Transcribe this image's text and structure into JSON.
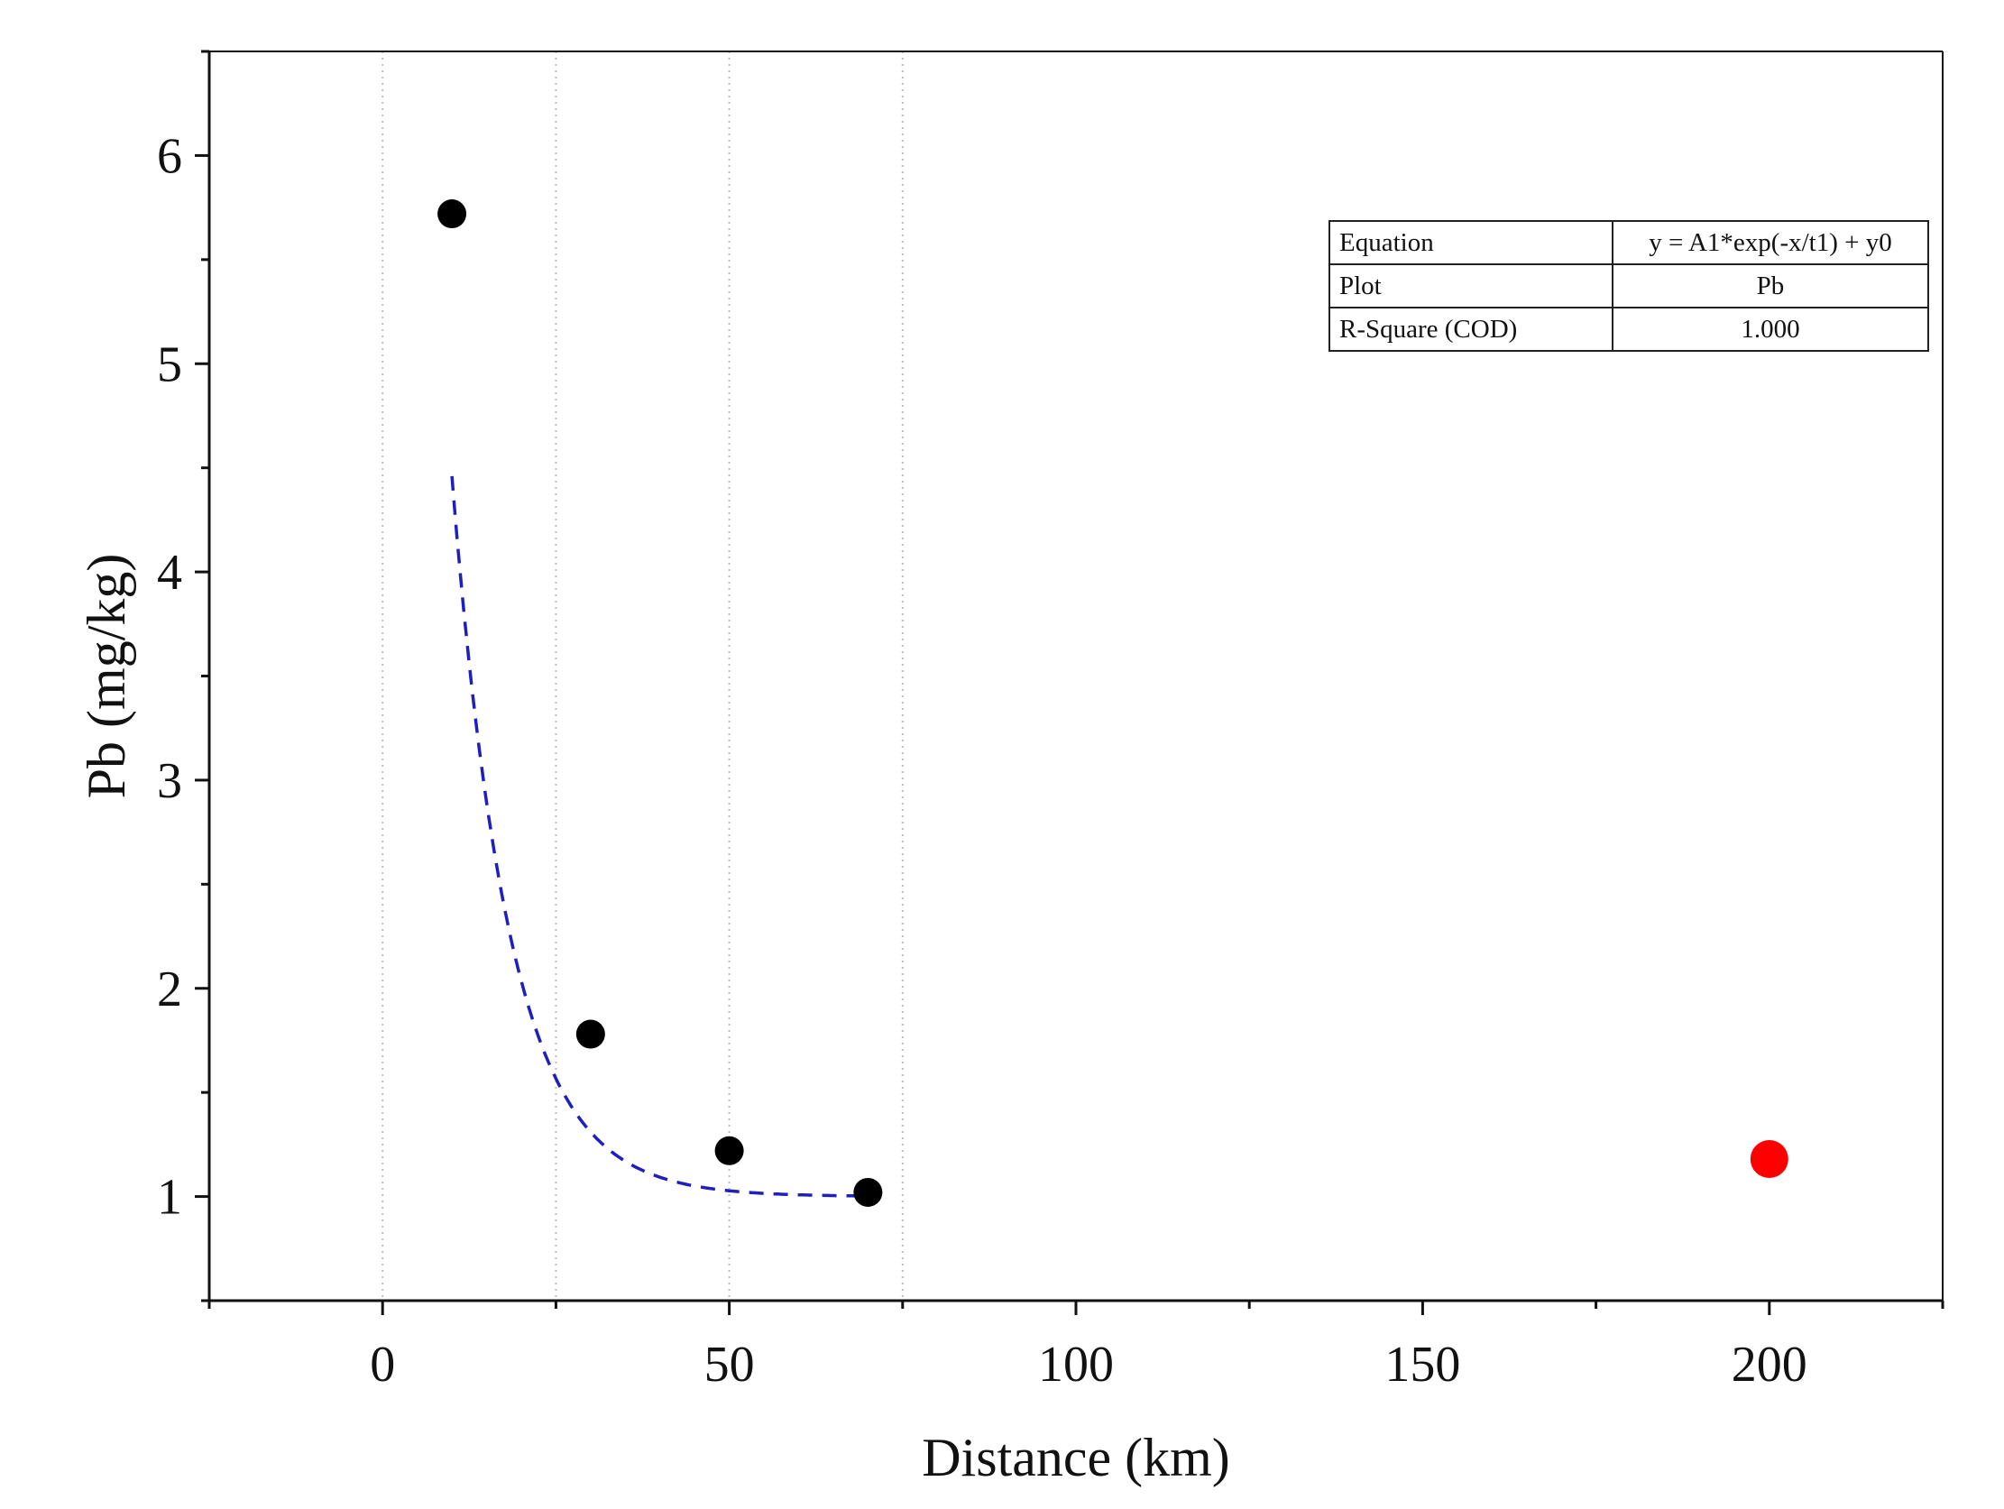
{
  "chart_data": {
    "type": "scatter",
    "xlabel": "Distance (km)",
    "ylabel": "Pb (mg/kg)",
    "xlim": [
      -25,
      225
    ],
    "ylim": [
      0.5,
      6.5
    ],
    "x_ticks": [
      0,
      50,
      100,
      150,
      200
    ],
    "y_ticks": [
      1,
      2,
      3,
      4,
      5,
      6
    ],
    "grid": "vertical dotted",
    "series": [
      {
        "kind": "points",
        "color": "#000000",
        "x": [
          10,
          30,
          50,
          70
        ],
        "y": [
          5.72,
          1.78,
          1.22,
          1.02
        ]
      },
      {
        "kind": "points",
        "color": "#ff0000",
        "x": [
          200
        ],
        "y": [
          1.18
        ]
      },
      {
        "kind": "fit",
        "style": "dashed",
        "color": "#1f1fbf",
        "equation_params": {
          "A1": 11.56,
          "t1": 8.29,
          "y0": 1.0
        },
        "x_range": [
          10,
          70
        ]
      }
    ],
    "annotation_table": {
      "rows": [
        {
          "key": "Equation",
          "value": "y = A1*exp(-x/t1) + y0"
        },
        {
          "key": "Plot",
          "value": "Pb"
        },
        {
          "key": "R-Square (COD)",
          "value": "1.000"
        }
      ]
    }
  }
}
